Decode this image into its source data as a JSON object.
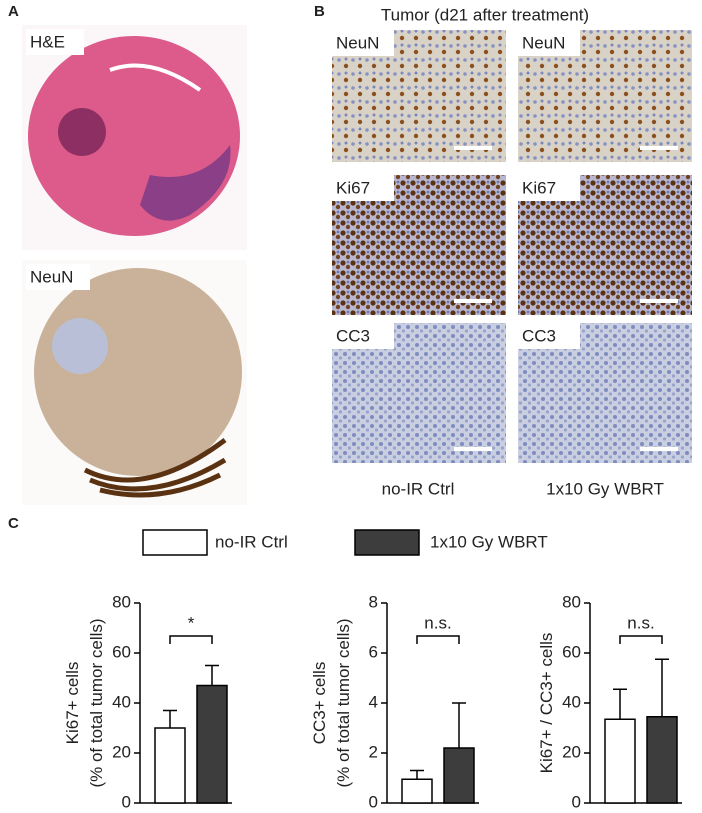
{
  "panel_a": {
    "label": "A",
    "images": [
      "H&E",
      "NeuN"
    ]
  },
  "panel_b": {
    "label": "B",
    "title": "Tumor (d21 after treatment)",
    "rows": [
      "NeuN",
      "Ki67",
      "CC3"
    ],
    "columns": [
      "no-IR Ctrl",
      "1x10 Gy WBRT"
    ]
  },
  "panel_c": {
    "label": "C"
  },
  "legend": [
    {
      "name": "no-IR Ctrl",
      "color": "#ffffff"
    },
    {
      "name": "1x10 Gy WBRT",
      "color": "#3d3d3d"
    }
  ],
  "chart_data": [
    {
      "type": "bar",
      "ylabel": [
        "Ki67+ cells",
        "(% of total tumor cells)"
      ],
      "values": [
        30,
        47
      ],
      "errors": [
        7,
        8
      ],
      "ylim": [
        0,
        80
      ],
      "yticks": [
        0,
        20,
        40,
        60,
        80
      ],
      "annotation": "*"
    },
    {
      "type": "bar",
      "ylabel": [
        "CC3+ cells",
        "(% of total tumor cells)"
      ],
      "values": [
        0.95,
        2.2
      ],
      "errors": [
        0.35,
        1.8
      ],
      "ylim": [
        0,
        8
      ],
      "yticks": [
        0,
        2,
        4,
        6,
        8
      ],
      "annotation": "n.s."
    },
    {
      "type": "bar",
      "ylabel": [
        "Ki67+ / CC3+ cells"
      ],
      "values": [
        33.5,
        34.5
      ],
      "errors": [
        12,
        23
      ],
      "ylim": [
        0,
        80
      ],
      "yticks": [
        0,
        20,
        40,
        60,
        80
      ],
      "annotation": "n.s."
    }
  ]
}
